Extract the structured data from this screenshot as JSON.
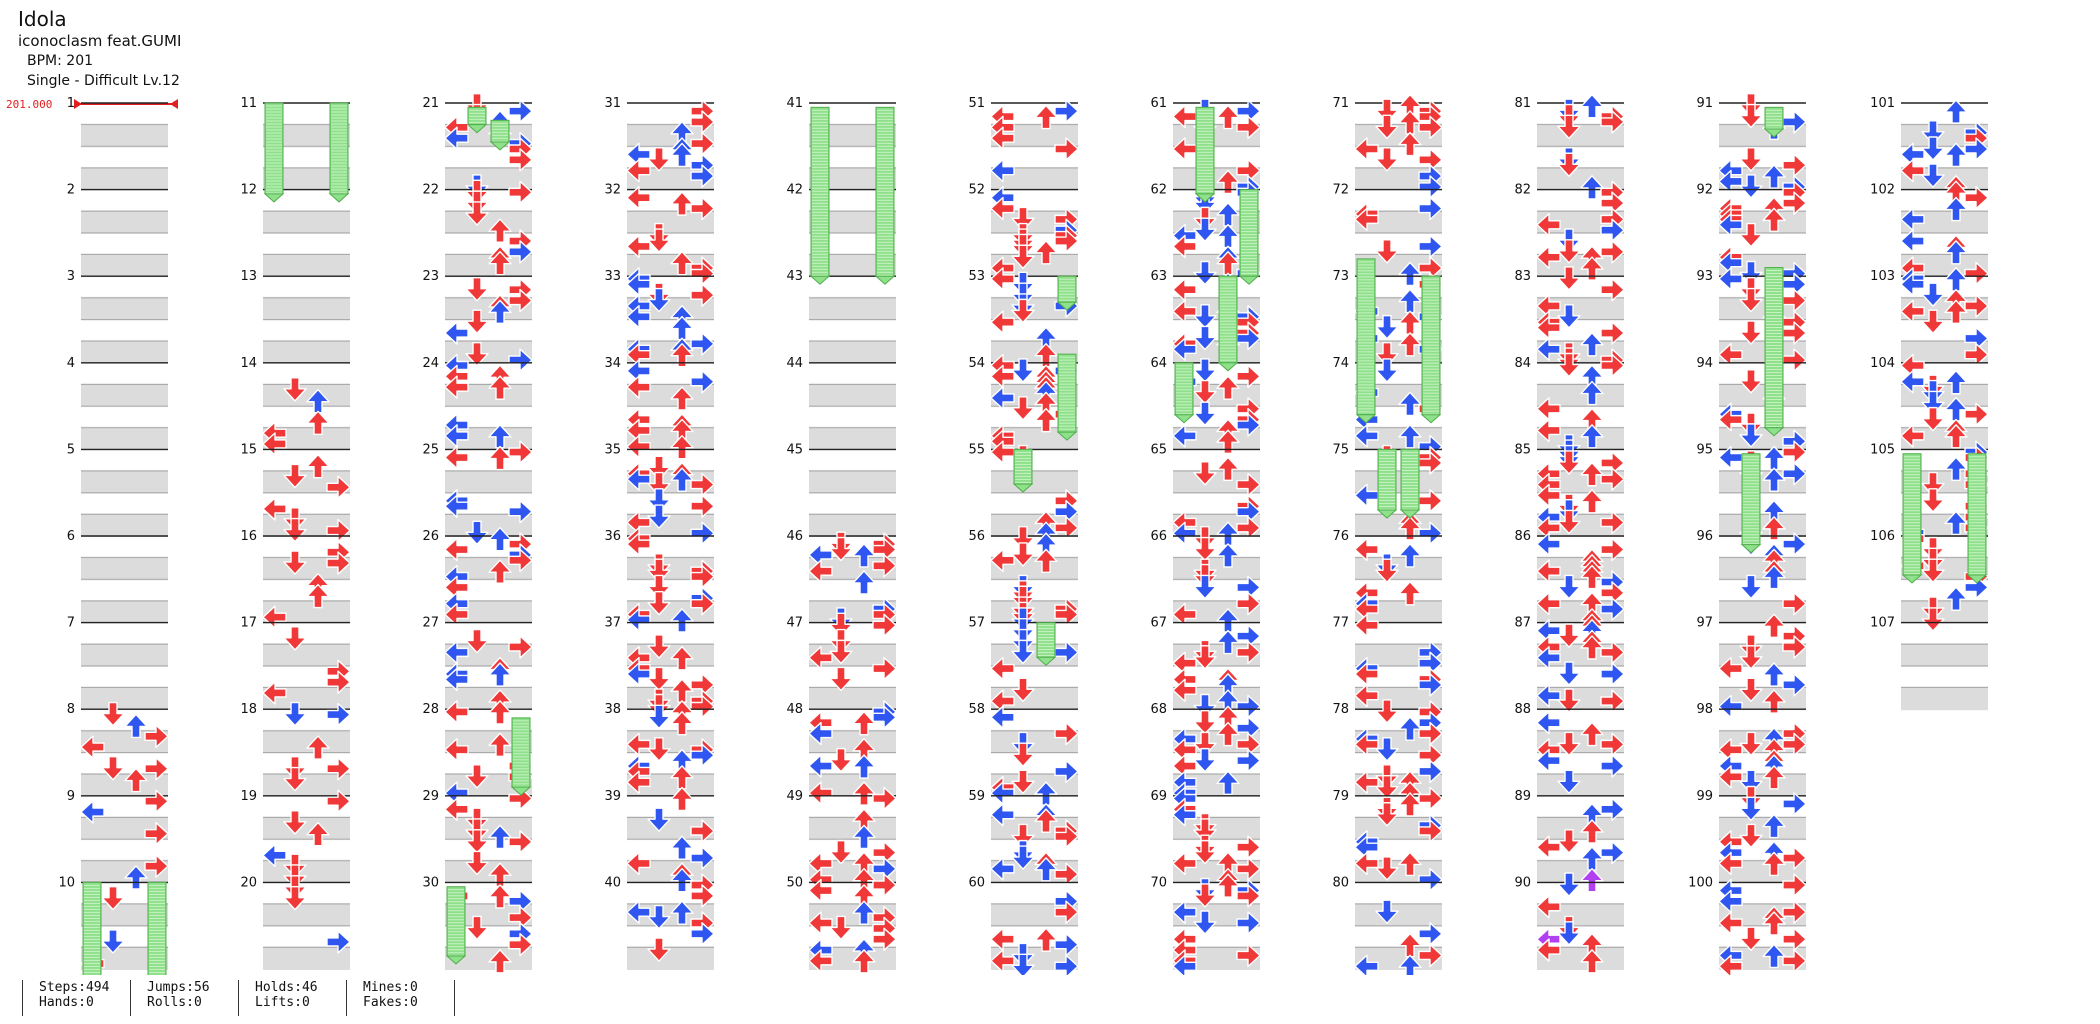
{
  "song": {
    "title": "Idola",
    "artist": "iconoclasm feat.GUMI",
    "bpm_label": "BPM: 201",
    "chart_label": "Single - Difficult  Lv.12"
  },
  "bpm_marker": {
    "value_label": "201.000",
    "color": "#e02020"
  },
  "colors": {
    "red_arrow": "#f03838",
    "blue_arrow": "#2f56f0",
    "purple_arrow": "#b040f0",
    "hold": "#8ee08a",
    "hold_edge": "#4fae4a",
    "band": "#dcdcdc"
  },
  "chart": {
    "total_measures": 107,
    "lanes": [
      "left",
      "down",
      "up",
      "right"
    ],
    "columns": [
      {
        "measures": [
          1,
          2,
          3,
          4,
          5,
          6,
          7,
          8,
          9,
          10
        ]
      },
      {
        "measures": [
          11,
          12,
          13,
          14,
          15,
          16,
          17,
          18,
          19,
          20
        ]
      },
      {
        "measures": [
          21,
          22,
          23,
          24,
          25,
          26,
          27,
          28,
          29,
          30
        ]
      },
      {
        "measures": [
          31,
          32,
          33,
          34,
          35,
          36,
          37,
          38,
          39,
          40
        ]
      },
      {
        "measures": [
          41,
          42,
          43,
          44,
          45,
          46,
          47,
          48,
          49,
          50
        ]
      },
      {
        "measures": [
          51,
          52,
          53,
          54,
          55,
          56,
          57,
          58,
          59,
          60
        ]
      },
      {
        "measures": [
          61,
          62,
          63,
          64,
          65,
          66,
          67,
          68,
          69,
          70
        ]
      },
      {
        "measures": [
          71,
          72,
          73,
          74,
          75,
          76,
          77,
          78,
          79,
          80
        ]
      },
      {
        "measures": [
          81,
          82,
          83,
          84,
          85,
          86,
          87,
          88,
          89,
          90
        ]
      },
      {
        "measures": [
          91,
          92,
          93,
          94,
          95,
          96,
          97,
          98,
          99,
          100
        ]
      },
      {
        "measures": [
          101,
          102,
          103,
          104,
          105,
          106,
          107
        ]
      }
    ]
  },
  "stats": [
    {
      "top": "Steps:494",
      "bottom": "Hands:0"
    },
    {
      "top": "Jumps:56",
      "bottom": "Rolls:0"
    },
    {
      "top": "Holds:46",
      "bottom": "Lifts:0"
    },
    {
      "top": "Mines:0",
      "bottom": "Fakes:0"
    }
  ]
}
